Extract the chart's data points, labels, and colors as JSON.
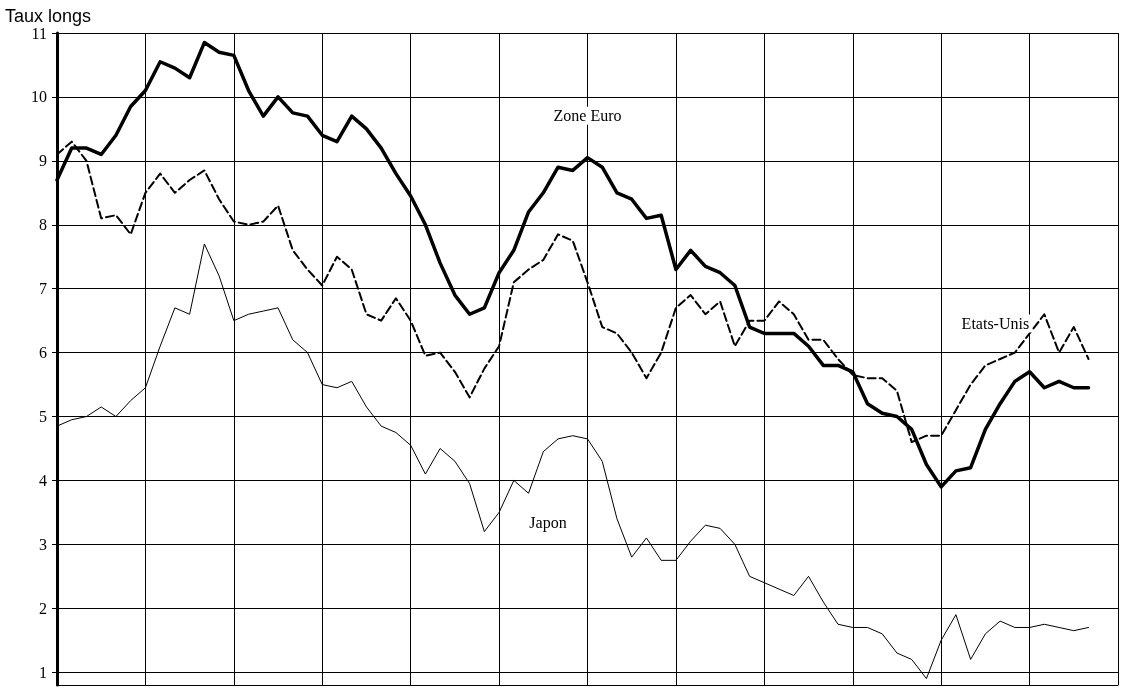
{
  "chart_data": {
    "type": "line",
    "ylabel": "Taux longs",
    "categories": [
      null,
      null,
      null,
      null,
      null,
      null,
      null,
      null,
      null,
      null,
      null,
      null,
      null,
      null,
      null,
      null,
      null,
      null,
      null,
      null,
      null,
      null,
      null,
      null,
      null,
      null,
      null,
      null,
      null,
      null,
      null,
      null,
      null,
      null,
      null,
      null,
      null,
      null,
      null,
      null,
      null,
      null,
      null,
      null,
      null,
      null,
      null,
      null,
      null,
      null,
      null,
      null,
      null,
      null,
      null,
      null,
      null,
      null,
      null,
      null,
      null,
      null,
      null,
      null,
      null,
      null,
      null,
      null,
      null,
      null,
      null,
      null,
      null
    ],
    "series": [
      {
        "name": "Zone Euro",
        "color": "#000000",
        "line_style": "solid",
        "values": [
          8.7,
          9.2,
          9.2,
          9.1,
          9.4,
          9.85,
          10.1,
          10.55,
          10.45,
          10.3,
          10.85,
          10.7,
          10.65,
          10.1,
          9.7,
          10.0,
          9.75,
          9.7,
          9.4,
          9.3,
          9.7,
          9.5,
          9.2,
          8.8,
          8.45,
          8.0,
          7.4,
          6.9,
          6.6,
          6.7,
          7.25,
          7.6,
          8.2,
          8.5,
          8.9,
          8.85,
          9.05,
          8.9,
          8.5,
          8.4,
          8.1,
          8.15,
          7.3,
          7.6,
          7.35,
          7.25,
          7.05,
          6.4,
          6.3,
          6.3,
          6.3,
          6.1,
          5.8,
          5.8,
          5.7,
          5.2,
          5.05,
          5.0,
          4.8,
          4.25,
          3.9,
          4.15,
          4.2,
          4.8,
          5.2,
          5.55,
          5.7,
          5.45,
          5.55,
          5.45,
          5.45,
          null,
          null
        ]
      },
      {
        "name": "Etats-Unis",
        "color": "#000000",
        "line_style": "dashed",
        "values": [
          9.1,
          9.3,
          9.0,
          8.1,
          8.15,
          7.85,
          8.5,
          8.8,
          8.5,
          8.7,
          8.85,
          8.4,
          8.05,
          8.0,
          8.05,
          8.3,
          7.6,
          7.3,
          7.05,
          7.5,
          7.3,
          6.6,
          6.5,
          6.85,
          6.5,
          5.95,
          6.0,
          5.7,
          5.3,
          5.75,
          6.1,
          7.1,
          7.3,
          7.45,
          7.85,
          7.75,
          7.1,
          6.4,
          6.3,
          6.0,
          5.6,
          6.0,
          6.7,
          6.9,
          6.6,
          6.8,
          6.1,
          6.5,
          6.5,
          6.8,
          6.6,
          6.2,
          6.2,
          5.9,
          5.65,
          5.6,
          5.6,
          5.4,
          4.6,
          4.7,
          4.7,
          5.1,
          5.5,
          5.8,
          5.9,
          6.0,
          6.3,
          6.6,
          6.0,
          6.4,
          5.9,
          null,
          null
        ]
      },
      {
        "name": "Japon",
        "color": "#000000",
        "line_style": "solid",
        "values": [
          4.85,
          4.95,
          5.0,
          5.15,
          5.0,
          5.25,
          5.45,
          6.1,
          6.7,
          6.6,
          7.7,
          7.2,
          6.5,
          6.6,
          6.65,
          6.7,
          6.2,
          6.0,
          5.5,
          5.45,
          5.55,
          5.15,
          4.85,
          4.75,
          4.55,
          4.1,
          4.5,
          4.3,
          3.95,
          3.2,
          3.5,
          4.0,
          3.8,
          4.45,
          4.65,
          4.7,
          4.65,
          4.3,
          3.4,
          2.8,
          3.1,
          2.75,
          2.75,
          3.05,
          3.3,
          3.25,
          3.0,
          2.5,
          2.4,
          2.3,
          2.2,
          2.5,
          2.1,
          1.75,
          1.7,
          1.7,
          1.6,
          1.3,
          1.2,
          0.9,
          1.5,
          1.9,
          1.2,
          1.6,
          1.8,
          1.7,
          1.7,
          1.75,
          1.7,
          1.65,
          1.7,
          null,
          null
        ]
      }
    ],
    "ylim": [
      0.8,
      11
    ],
    "yticks": [
      1,
      2,
      3,
      4,
      5,
      6,
      7,
      8,
      9,
      10,
      11
    ],
    "grid": true,
    "marker": "none"
  }
}
